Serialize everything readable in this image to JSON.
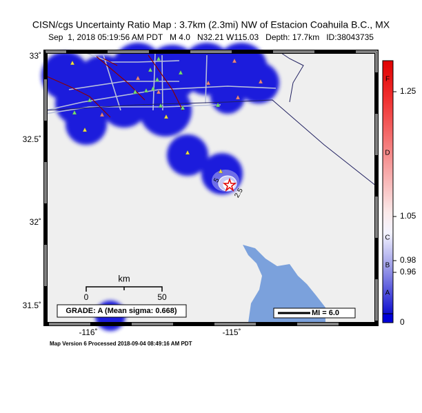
{
  "header": {
    "title": "CISN/cgs Uncertainty Ratio Map : 3.7km (2.3mi) NW of Estacion Coahuila B.C., MX",
    "subtitle": "Sep  1, 2018 05:19:56 AM PDT   M 4.0   N32.21 W115.03   Depth: 17.7km   ID:38043735"
  },
  "axes": {
    "latitude_labels": [
      "33˚",
      "32.5˚",
      "32˚",
      "31.5˚"
    ],
    "longitude_labels": [
      "-116˚",
      "-115˚"
    ]
  },
  "scale": {
    "unit": "km",
    "labels": [
      "0",
      "50"
    ]
  },
  "contours": [
    "5",
    "2.5"
  ],
  "grade": "GRADE: A (Mean sigma: 0.668)",
  "mi_box": "MI = 6.0",
  "colorbar": {
    "letters": [
      "F",
      "D",
      "C",
      "B",
      "A"
    ],
    "values": [
      "1.25",
      "1.05",
      "0.98",
      "0.96",
      "0"
    ]
  },
  "footer": "Map Version 6 Processed 2018-09-04 08:49:16 AM PDT"
}
